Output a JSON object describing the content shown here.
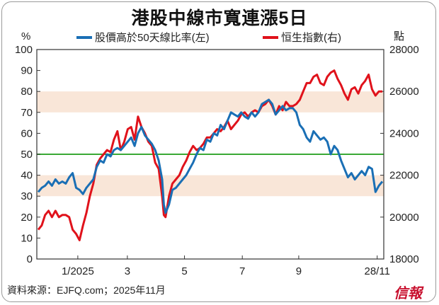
{
  "title": "港股中線市寬連漲5日",
  "source": "資料來源：EJFQ.com；2025年11月",
  "logo": "信報",
  "chart_data": {
    "type": "line",
    "y_left_label": "%",
    "y_right_label": "點",
    "y_left_range": [
      0,
      100
    ],
    "y_right_range": [
      18000,
      28000
    ],
    "y_left_ticks": [
      "0",
      "10",
      "20",
      "30",
      "40",
      "50",
      "60",
      "70",
      "80",
      "90",
      "100"
    ],
    "y_right_ticks": [
      "18000",
      "20000",
      "22000",
      "24000",
      "26000",
      "28000"
    ],
    "x_ticks": [
      {
        "label": "1/2025",
        "t": 0.115
      },
      {
        "label": "3",
        "t": 0.259
      },
      {
        "label": "5",
        "t": 0.425
      },
      {
        "label": "7",
        "t": 0.593
      },
      {
        "label": "9",
        "t": 0.757
      },
      {
        "label": "28/11",
        "t": 0.985
      }
    ],
    "bands": [
      [
        30,
        40
      ],
      [
        70,
        80
      ]
    ],
    "reference_line": 50,
    "colors": {
      "breadth": "#1a6fb5",
      "hsi": "#e0121b",
      "reference": "#3aa935",
      "band": "#f9e6d8"
    },
    "series": [
      {
        "name": "股價高於50天線比率(左)",
        "axis": "left",
        "color": "#1a6fb5",
        "points": [
          [
            0.0,
            32
          ],
          [
            0.01,
            34
          ],
          [
            0.02,
            35
          ],
          [
            0.03,
            37
          ],
          [
            0.04,
            35
          ],
          [
            0.05,
            38
          ],
          [
            0.06,
            36
          ],
          [
            0.07,
            37
          ],
          [
            0.08,
            36
          ],
          [
            0.09,
            39
          ],
          [
            0.1,
            41
          ],
          [
            0.11,
            34
          ],
          [
            0.12,
            33
          ],
          [
            0.13,
            31
          ],
          [
            0.14,
            34
          ],
          [
            0.15,
            36
          ],
          [
            0.16,
            38
          ],
          [
            0.17,
            44
          ],
          [
            0.18,
            47
          ],
          [
            0.19,
            46
          ],
          [
            0.2,
            50
          ],
          [
            0.21,
            49
          ],
          [
            0.22,
            52
          ],
          [
            0.23,
            53
          ],
          [
            0.24,
            52
          ],
          [
            0.25,
            54
          ],
          [
            0.26,
            56
          ],
          [
            0.27,
            58
          ],
          [
            0.28,
            54
          ],
          [
            0.29,
            60
          ],
          [
            0.3,
            63
          ],
          [
            0.31,
            59
          ],
          [
            0.32,
            57
          ],
          [
            0.33,
            55
          ],
          [
            0.34,
            52
          ],
          [
            0.35,
            47
          ],
          [
            0.36,
            38
          ],
          [
            0.365,
            26
          ],
          [
            0.37,
            22
          ],
          [
            0.38,
            26
          ],
          [
            0.39,
            33
          ],
          [
            0.4,
            34
          ],
          [
            0.41,
            36
          ],
          [
            0.42,
            38
          ],
          [
            0.43,
            40
          ],
          [
            0.44,
            43
          ],
          [
            0.45,
            46
          ],
          [
            0.46,
            50
          ],
          [
            0.47,
            53
          ],
          [
            0.48,
            52
          ],
          [
            0.49,
            57
          ],
          [
            0.5,
            56
          ],
          [
            0.51,
            60
          ],
          [
            0.52,
            59
          ],
          [
            0.53,
            64
          ],
          [
            0.54,
            62
          ],
          [
            0.55,
            66
          ],
          [
            0.56,
            70
          ],
          [
            0.57,
            69
          ],
          [
            0.58,
            68
          ],
          [
            0.59,
            70
          ],
          [
            0.6,
            68
          ],
          [
            0.61,
            67
          ],
          [
            0.62,
            70
          ],
          [
            0.63,
            68
          ],
          [
            0.64,
            70
          ],
          [
            0.65,
            74
          ],
          [
            0.66,
            75
          ],
          [
            0.67,
            76
          ],
          [
            0.68,
            74
          ],
          [
            0.69,
            69
          ],
          [
            0.7,
            71
          ],
          [
            0.71,
            73
          ],
          [
            0.72,
            71
          ],
          [
            0.73,
            72
          ],
          [
            0.74,
            72
          ],
          [
            0.75,
            70
          ],
          [
            0.76,
            64
          ],
          [
            0.77,
            62
          ],
          [
            0.78,
            58
          ],
          [
            0.79,
            56
          ],
          [
            0.8,
            61
          ],
          [
            0.81,
            59
          ],
          [
            0.82,
            57
          ],
          [
            0.83,
            58
          ],
          [
            0.84,
            56
          ],
          [
            0.85,
            50
          ],
          [
            0.86,
            54
          ],
          [
            0.87,
            52
          ],
          [
            0.88,
            47
          ],
          [
            0.89,
            43
          ],
          [
            0.9,
            39
          ],
          [
            0.91,
            41
          ],
          [
            0.92,
            38
          ],
          [
            0.93,
            40
          ],
          [
            0.94,
            42
          ],
          [
            0.95,
            40
          ],
          [
            0.96,
            44
          ],
          [
            0.97,
            43
          ],
          [
            0.98,
            32
          ],
          [
            0.99,
            35
          ],
          [
            1.0,
            37
          ]
        ]
      },
      {
        "name": "恒生指數(右)",
        "axis": "right",
        "color": "#e0121b",
        "points": [
          [
            0.0,
            19400
          ],
          [
            0.01,
            19600
          ],
          [
            0.02,
            20100
          ],
          [
            0.03,
            20300
          ],
          [
            0.04,
            20000
          ],
          [
            0.05,
            20300
          ],
          [
            0.06,
            20000
          ],
          [
            0.07,
            20100
          ],
          [
            0.08,
            20100
          ],
          [
            0.09,
            20000
          ],
          [
            0.1,
            19400
          ],
          [
            0.11,
            19200
          ],
          [
            0.12,
            18900
          ],
          [
            0.13,
            19600
          ],
          [
            0.14,
            20200
          ],
          [
            0.15,
            21000
          ],
          [
            0.16,
            21600
          ],
          [
            0.17,
            22500
          ],
          [
            0.18,
            22800
          ],
          [
            0.19,
            23000
          ],
          [
            0.2,
            23200
          ],
          [
            0.21,
            23100
          ],
          [
            0.22,
            23700
          ],
          [
            0.23,
            24100
          ],
          [
            0.24,
            23200
          ],
          [
            0.25,
            23600
          ],
          [
            0.26,
            24200
          ],
          [
            0.27,
            24300
          ],
          [
            0.28,
            23700
          ],
          [
            0.29,
            24800
          ],
          [
            0.3,
            24300
          ],
          [
            0.31,
            24000
          ],
          [
            0.32,
            23600
          ],
          [
            0.33,
            23400
          ],
          [
            0.34,
            22600
          ],
          [
            0.35,
            22300
          ],
          [
            0.36,
            21000
          ],
          [
            0.365,
            20100
          ],
          [
            0.37,
            20000
          ],
          [
            0.38,
            21000
          ],
          [
            0.39,
            21600
          ],
          [
            0.4,
            21800
          ],
          [
            0.41,
            22000
          ],
          [
            0.42,
            22400
          ],
          [
            0.43,
            22700
          ],
          [
            0.44,
            23100
          ],
          [
            0.45,
            23400
          ],
          [
            0.46,
            23200
          ],
          [
            0.47,
            23300
          ],
          [
            0.48,
            23500
          ],
          [
            0.49,
            23800
          ],
          [
            0.5,
            23800
          ],
          [
            0.51,
            24000
          ],
          [
            0.52,
            24200
          ],
          [
            0.53,
            24100
          ],
          [
            0.54,
            24300
          ],
          [
            0.55,
            24600
          ],
          [
            0.56,
            24200
          ],
          [
            0.57,
            24400
          ],
          [
            0.58,
            24600
          ],
          [
            0.59,
            24900
          ],
          [
            0.6,
            25000
          ],
          [
            0.61,
            24800
          ],
          [
            0.62,
            25000
          ],
          [
            0.63,
            25100
          ],
          [
            0.64,
            25000
          ],
          [
            0.65,
            25300
          ],
          [
            0.66,
            25400
          ],
          [
            0.67,
            25600
          ],
          [
            0.68,
            25300
          ],
          [
            0.69,
            24900
          ],
          [
            0.7,
            25300
          ],
          [
            0.71,
            25100
          ],
          [
            0.72,
            25500
          ],
          [
            0.73,
            25300
          ],
          [
            0.74,
            25300
          ],
          [
            0.75,
            25400
          ],
          [
            0.76,
            25600
          ],
          [
            0.77,
            26000
          ],
          [
            0.78,
            26400
          ],
          [
            0.79,
            26400
          ],
          [
            0.8,
            26700
          ],
          [
            0.81,
            26800
          ],
          [
            0.82,
            26400
          ],
          [
            0.83,
            26300
          ],
          [
            0.84,
            26700
          ],
          [
            0.85,
            26900
          ],
          [
            0.86,
            27000
          ],
          [
            0.87,
            26600
          ],
          [
            0.88,
            26300
          ],
          [
            0.89,
            25900
          ],
          [
            0.9,
            25600
          ],
          [
            0.91,
            26100
          ],
          [
            0.92,
            26200
          ],
          [
            0.93,
            25900
          ],
          [
            0.94,
            26300
          ],
          [
            0.95,
            26500
          ],
          [
            0.96,
            26800
          ],
          [
            0.97,
            26100
          ],
          [
            0.98,
            25800
          ],
          [
            0.99,
            26000
          ],
          [
            1.0,
            26000
          ]
        ]
      }
    ]
  }
}
